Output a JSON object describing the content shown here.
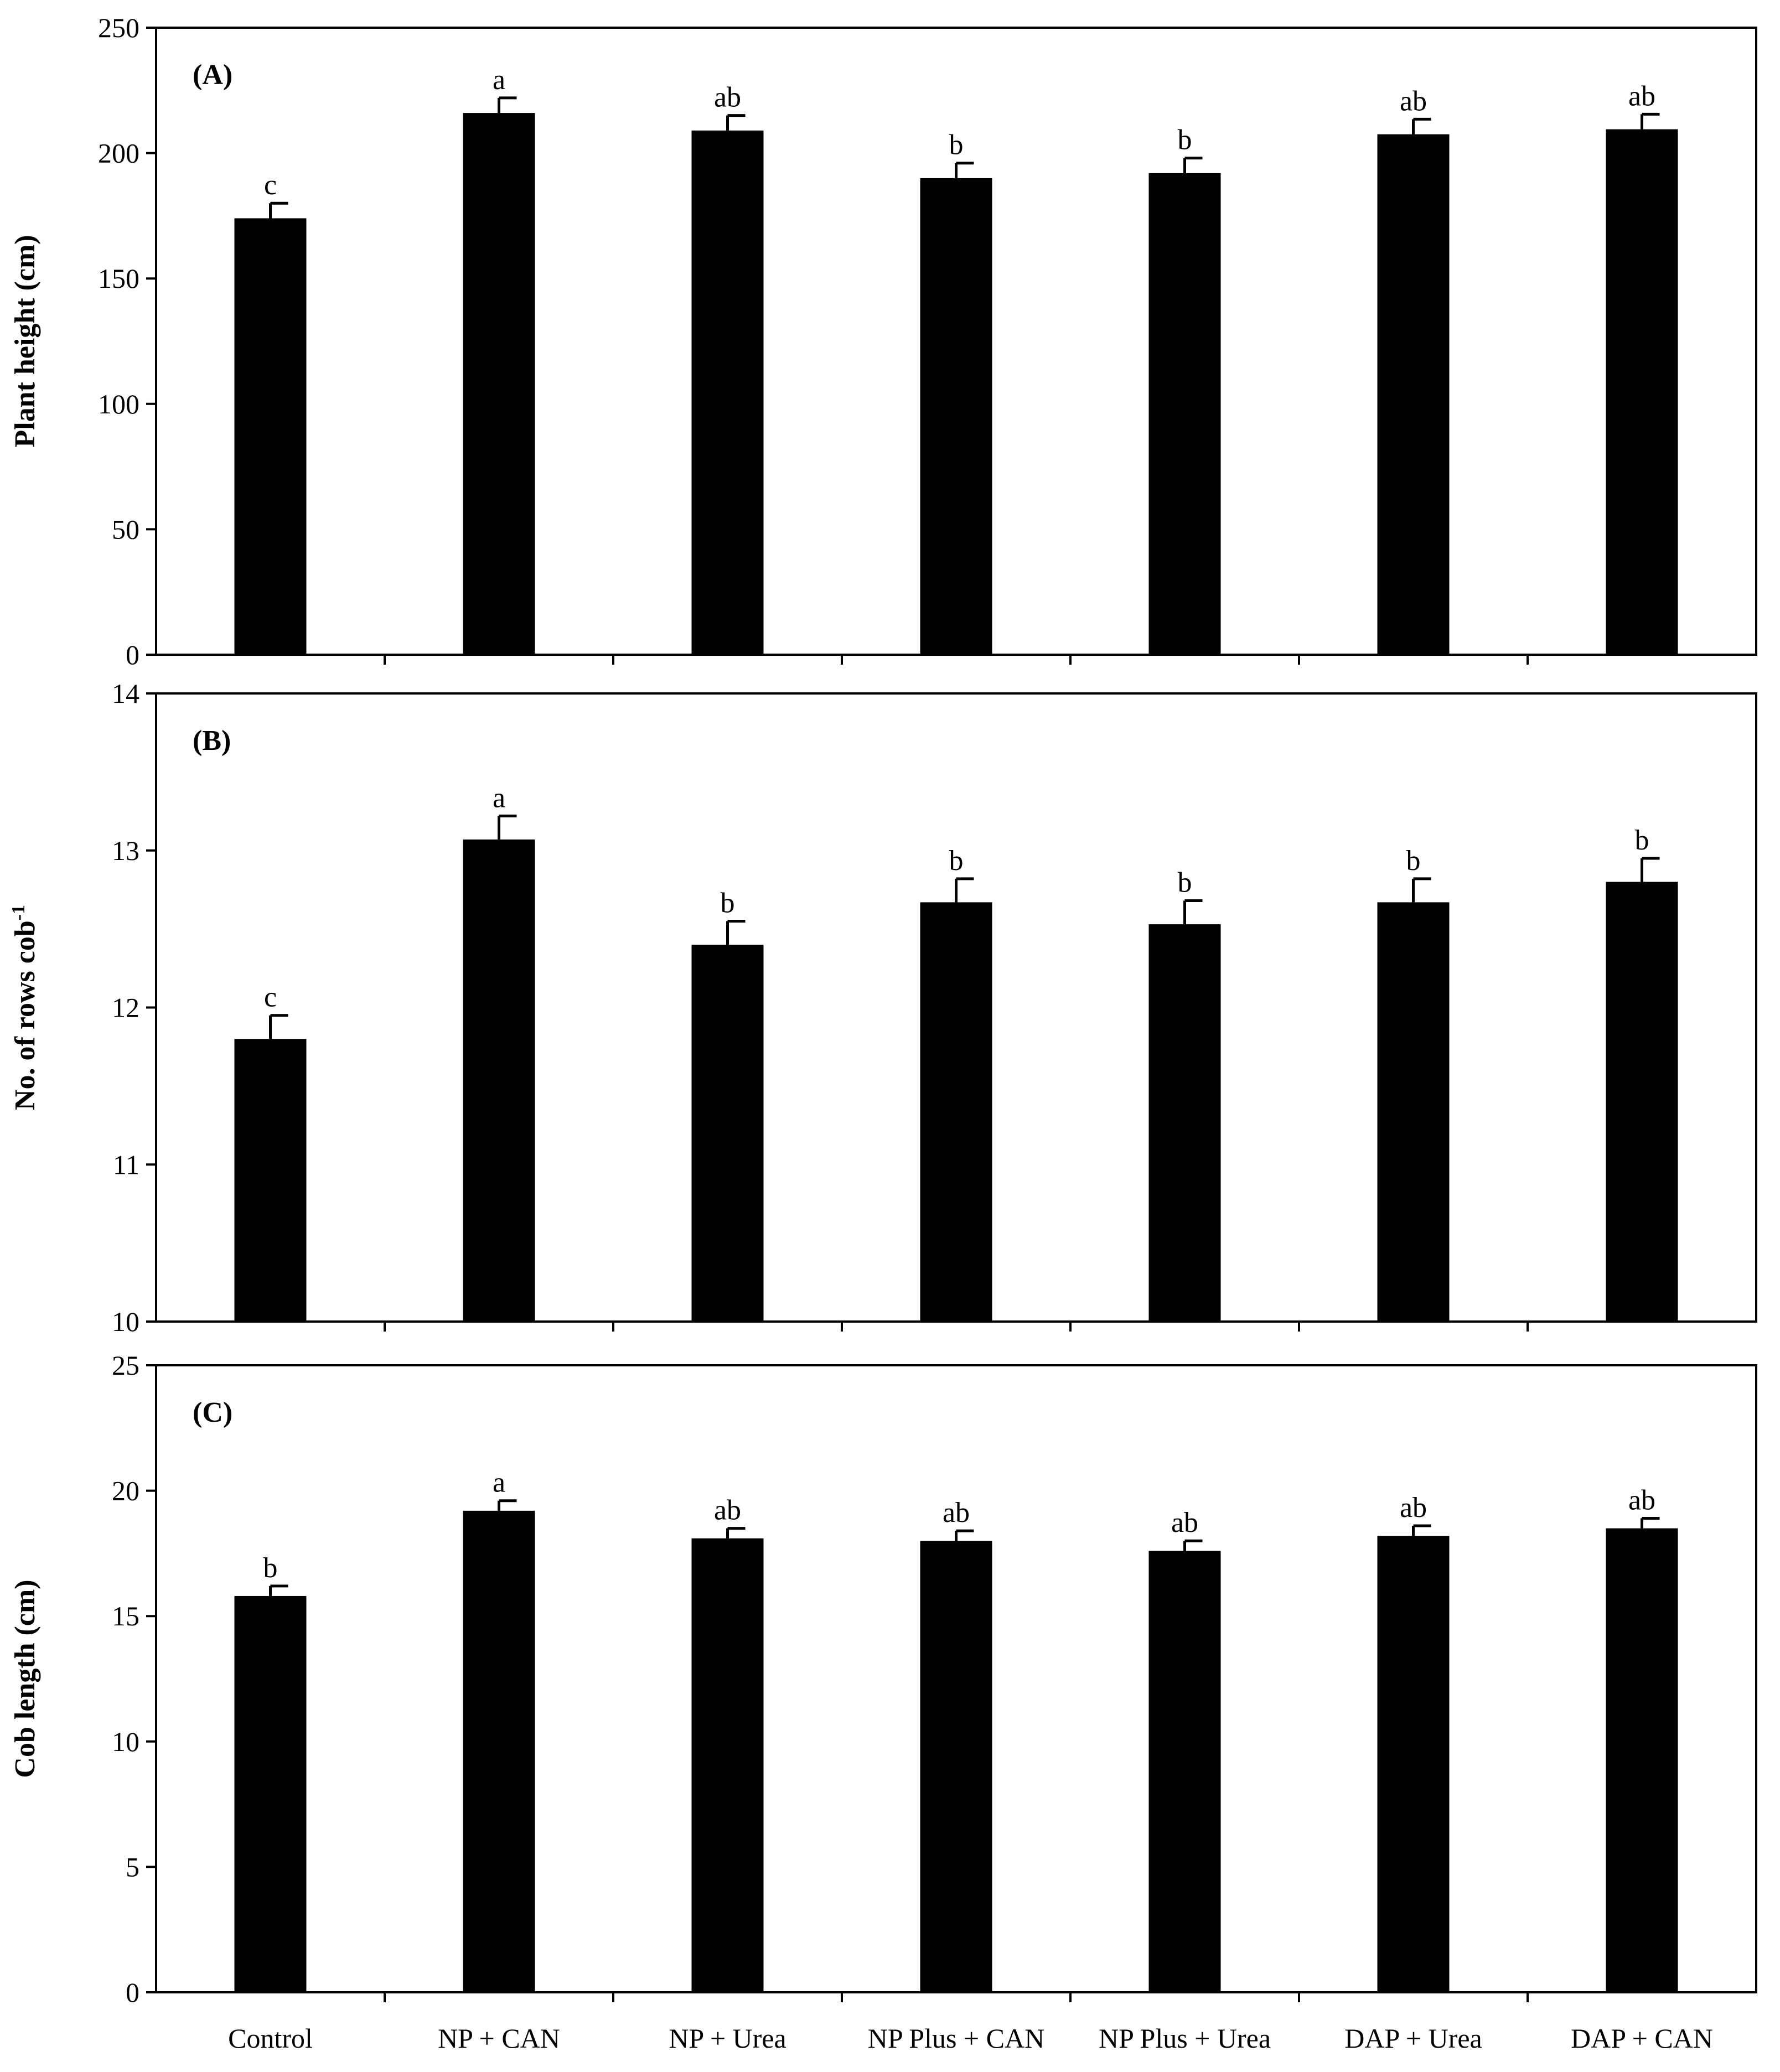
{
  "chart_data": [
    {
      "type": "bar",
      "panel_label": "(A)",
      "ylabel": "Plant height (cm)",
      "categories": [
        "Control",
        "NP + CAN",
        "NP + Urea",
        "NP Plus + CAN",
        "NP Plus + Urea",
        "DAP + Urea",
        "DAP + CAN"
      ],
      "values": [
        174,
        216,
        209,
        190,
        192,
        207.5,
        209.5
      ],
      "errors": [
        6,
        6,
        6,
        6,
        6,
        6,
        6
      ],
      "significance": [
        "c",
        "a",
        "ab",
        "b",
        "b",
        "ab",
        "ab"
      ],
      "ylim": [
        0,
        250
      ],
      "yticks": [
        0,
        50,
        100,
        150,
        200,
        250
      ],
      "color": "#000000"
    },
    {
      "type": "bar",
      "panel_label": "(B)",
      "ylabel": "No. of rows cob",
      "ylabel_superscript": "-1",
      "categories": [
        "Control",
        "NP + CAN",
        "NP + Urea",
        "NP Plus + CAN",
        "NP Plus + Urea",
        "DAP + Urea",
        "DAP + CAN"
      ],
      "values": [
        11.8,
        13.07,
        12.4,
        12.67,
        12.53,
        12.67,
        12.8
      ],
      "errors": [
        0.15,
        0.15,
        0.15,
        0.15,
        0.15,
        0.15,
        0.15
      ],
      "significance": [
        "c",
        "a",
        "b",
        "b",
        "b",
        "b",
        "b"
      ],
      "ylim": [
        10,
        14
      ],
      "yticks": [
        10,
        11,
        12,
        13,
        14
      ],
      "color": "#000000"
    },
    {
      "type": "bar",
      "panel_label": "(C)",
      "ylabel": "Cob length (cm)",
      "categories": [
        "Control",
        "NP + CAN",
        "NP + Urea",
        "NP Plus + CAN",
        "NP Plus + Urea",
        "DAP + Urea",
        "DAP + CAN"
      ],
      "values": [
        15.8,
        19.2,
        18.1,
        18.0,
        17.6,
        18.2,
        18.5
      ],
      "errors": [
        0.4,
        0.4,
        0.4,
        0.4,
        0.4,
        0.4,
        0.4
      ],
      "significance": [
        "b",
        "a",
        "ab",
        "ab",
        "ab",
        "ab",
        "ab"
      ],
      "ylim": [
        0,
        25
      ],
      "yticks": [
        0,
        5,
        10,
        15,
        20,
        25
      ],
      "color": "#000000"
    }
  ]
}
